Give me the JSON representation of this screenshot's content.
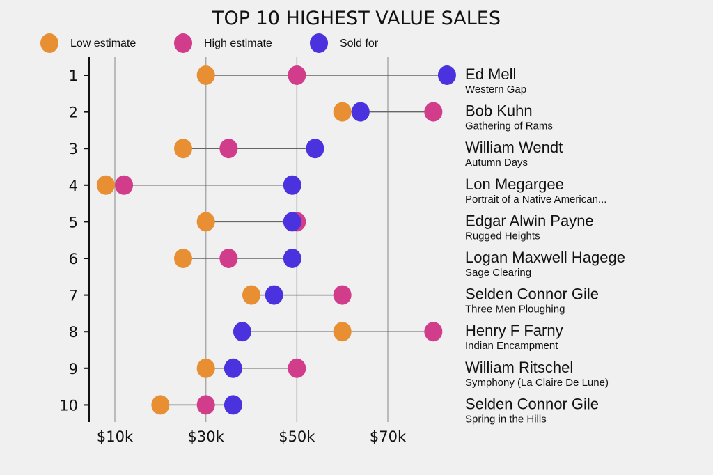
{
  "chart_data": {
    "type": "dot-plot",
    "title": "TOP 10 HIGHEST VALUE SALES",
    "xlabel": "",
    "ylabel": "",
    "xlim": [
      4,
      84
    ],
    "x_ticks": [
      10,
      30,
      50,
      70
    ],
    "x_tick_labels": [
      "$10k",
      "$30k",
      "$50k",
      "$70k"
    ],
    "grid": "vertical",
    "legend_placement": "top-left",
    "series": [
      {
        "name": "Low estimate",
        "key": "low",
        "color": "#e88f34"
      },
      {
        "name": "High estimate",
        "key": "high",
        "color": "#d23d8b"
      },
      {
        "name": "Sold for",
        "key": "sold",
        "color": "#4a32de"
      }
    ],
    "rows": [
      {
        "rank": "1",
        "artist": "Ed Mell",
        "work": "Western Gap",
        "low": 30,
        "high": 50,
        "sold": 83
      },
      {
        "rank": "2",
        "artist": "Bob Kuhn",
        "work": "Gathering of Rams",
        "low": 60,
        "high": 80,
        "sold": 64
      },
      {
        "rank": "3",
        "artist": "William Wendt",
        "work": "Autumn Days",
        "low": 25,
        "high": 35,
        "sold": 54
      },
      {
        "rank": "4",
        "artist": "Lon Megargee",
        "work": "Portrait of a Native American...",
        "low": 8,
        "high": 12,
        "sold": 49
      },
      {
        "rank": "5",
        "artist": "Edgar Alwin Payne",
        "work": "Rugged Heights",
        "low": 30,
        "high": 50,
        "sold": 49
      },
      {
        "rank": "6",
        "artist": "Logan Maxwell Hagege",
        "work": "Sage Clearing",
        "low": 25,
        "high": 35,
        "sold": 49
      },
      {
        "rank": "7",
        "artist": "Selden Connor Gile",
        "work": "Three Men Ploughing",
        "low": 40,
        "high": 60,
        "sold": 45
      },
      {
        "rank": "8",
        "artist": "Henry F Farny",
        "work": "Indian Encampment",
        "low": 60,
        "high": 80,
        "sold": 38
      },
      {
        "rank": "9",
        "artist": "William Ritschel",
        "work": "Symphony (La Claire De Lune)",
        "low": 30,
        "high": 50,
        "sold": 36
      },
      {
        "rank": "10",
        "artist": "Selden Connor Gile",
        "work": "Spring in the Hills",
        "low": 20,
        "high": 30,
        "sold": 36
      }
    ]
  }
}
